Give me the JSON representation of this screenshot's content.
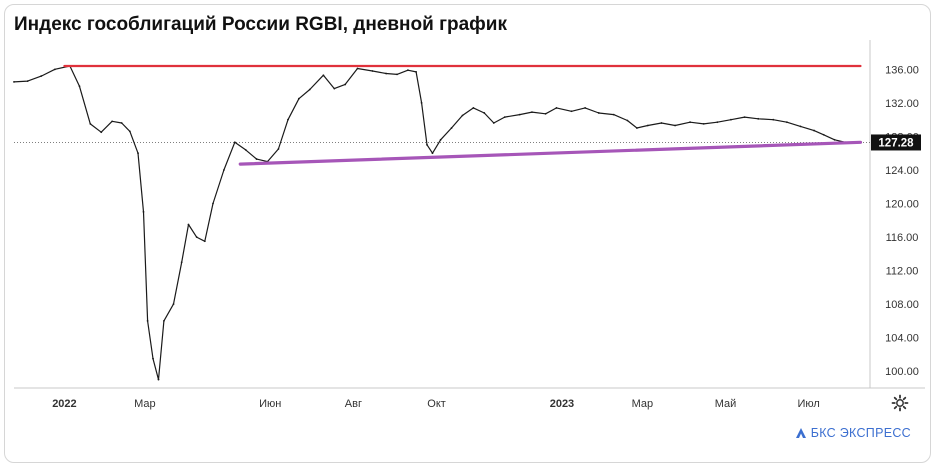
{
  "title": "Индекс гособлигаций России RGBI, дневной график",
  "brand": "БКС ЭКСПРЕСС",
  "icons": {
    "settings": "gear-icon",
    "brand": "triangle-logo-icon"
  },
  "colors": {
    "price": "#1a1a1a",
    "resistance": "#e0313b",
    "support": "#a656b8",
    "last_label_bg": "#111111",
    "axis_text": "#333333"
  },
  "chart_data": {
    "type": "line",
    "title": "Индекс гособлигаций России RGBI, дневной график",
    "xlabel": "",
    "ylabel": "",
    "x_ticks": [
      "2022",
      "Мар",
      "Июн",
      "Авг",
      "Окт",
      "2023",
      "Мар",
      "Май",
      "Июл"
    ],
    "x_tick_dates": [
      "2022-01-01",
      "2022-03-01",
      "2022-06-01",
      "2022-08-01",
      "2022-10-01",
      "2023-01-01",
      "2023-03-01",
      "2023-05-01",
      "2023-07-01"
    ],
    "x_range": [
      "2021-11-25",
      "2023-08-15"
    ],
    "y_ticks": [
      100,
      104,
      108,
      112,
      116,
      120,
      124,
      128,
      132,
      136
    ],
    "y_tick_labels": [
      "100.00",
      "104.00",
      "108.00",
      "112.00",
      "116.00",
      "120.00",
      "124.00",
      "128.00",
      "132.00",
      "136.00"
    ],
    "ylim": [
      98,
      139.5
    ],
    "last_value": 127.28,
    "last_value_label": "127.28",
    "series": [
      {
        "style": "line",
        "points": [
          [
            "2021-11-25",
            134.5
          ],
          [
            "2021-12-05",
            134.6
          ],
          [
            "2021-12-15",
            135.2
          ],
          [
            "2021-12-25",
            136.0
          ],
          [
            "2022-01-05",
            136.4
          ],
          [
            "2022-01-12",
            134.0
          ],
          [
            "2022-01-20",
            129.5
          ],
          [
            "2022-01-28",
            128.5
          ],
          [
            "2022-02-05",
            129.8
          ],
          [
            "2022-02-12",
            129.6
          ],
          [
            "2022-02-18",
            128.6
          ],
          [
            "2022-02-24",
            126.0
          ],
          [
            "2022-02-28",
            119.0
          ],
          [
            "2022-03-03",
            106.0
          ],
          [
            "2022-03-07",
            101.5
          ],
          [
            "2022-03-11",
            99.0
          ],
          [
            "2022-03-15",
            106.0
          ],
          [
            "2022-03-22",
            108.0
          ],
          [
            "2022-03-28",
            113.0
          ],
          [
            "2022-04-02",
            117.5
          ],
          [
            "2022-04-08",
            116.0
          ],
          [
            "2022-04-14",
            115.5
          ],
          [
            "2022-04-20",
            120.0
          ],
          [
            "2022-04-28",
            124.0
          ],
          [
            "2022-05-06",
            127.3
          ],
          [
            "2022-05-14",
            126.4
          ],
          [
            "2022-05-22",
            125.3
          ],
          [
            "2022-05-30",
            125.0
          ],
          [
            "2022-06-07",
            126.5
          ],
          [
            "2022-06-14",
            130.0
          ],
          [
            "2022-06-22",
            132.5
          ],
          [
            "2022-06-30",
            133.6
          ],
          [
            "2022-07-10",
            135.3
          ],
          [
            "2022-07-18",
            133.7
          ],
          [
            "2022-07-26",
            134.2
          ],
          [
            "2022-08-04",
            136.1
          ],
          [
            "2022-08-15",
            135.8
          ],
          [
            "2022-08-25",
            135.5
          ],
          [
            "2022-09-02",
            135.4
          ],
          [
            "2022-09-10",
            135.9
          ],
          [
            "2022-09-16",
            135.7
          ],
          [
            "2022-09-20",
            132.0
          ],
          [
            "2022-09-24",
            127.0
          ],
          [
            "2022-09-28",
            126.0
          ],
          [
            "2022-10-04",
            127.6
          ],
          [
            "2022-10-12",
            129.0
          ],
          [
            "2022-10-20",
            130.5
          ],
          [
            "2022-10-28",
            131.4
          ],
          [
            "2022-11-05",
            130.8
          ],
          [
            "2022-11-12",
            129.6
          ],
          [
            "2022-11-20",
            130.3
          ],
          [
            "2022-12-01",
            130.6
          ],
          [
            "2022-12-10",
            130.9
          ],
          [
            "2022-12-20",
            130.7
          ],
          [
            "2022-12-28",
            131.4
          ],
          [
            "2023-01-08",
            131.0
          ],
          [
            "2023-01-18",
            131.4
          ],
          [
            "2023-01-28",
            130.8
          ],
          [
            "2023-02-08",
            130.6
          ],
          [
            "2023-02-18",
            129.9
          ],
          [
            "2023-02-25",
            129.0
          ],
          [
            "2023-03-05",
            129.3
          ],
          [
            "2023-03-15",
            129.6
          ],
          [
            "2023-03-25",
            129.3
          ],
          [
            "2023-04-05",
            129.7
          ],
          [
            "2023-04-15",
            129.5
          ],
          [
            "2023-04-25",
            129.7
          ],
          [
            "2023-05-05",
            130.0
          ],
          [
            "2023-05-15",
            130.3
          ],
          [
            "2023-05-25",
            130.1
          ],
          [
            "2023-06-05",
            130.0
          ],
          [
            "2023-06-15",
            129.7
          ],
          [
            "2023-06-25",
            129.2
          ],
          [
            "2023-07-05",
            128.7
          ],
          [
            "2023-07-12",
            128.2
          ],
          [
            "2023-07-20",
            127.6
          ],
          [
            "2023-07-28",
            127.3
          ]
        ]
      },
      {
        "style": "resistance",
        "points": [
          [
            "2022-01-01",
            136.4
          ],
          [
            "2023-08-08",
            136.4
          ]
        ]
      },
      {
        "style": "support",
        "points": [
          [
            "2022-05-10",
            124.7
          ],
          [
            "2023-08-08",
            127.3
          ]
        ]
      }
    ]
  }
}
